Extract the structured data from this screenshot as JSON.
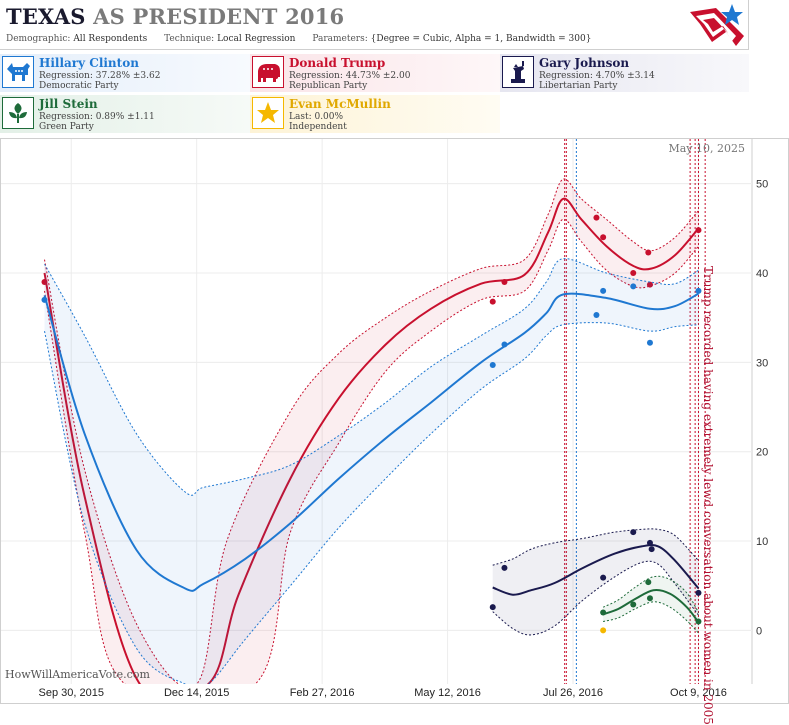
{
  "header": {
    "title_main": "TEXAS",
    "title_rest": " AS PRESIDENT 2016",
    "demographic_label": "Demographic:",
    "demographic_value": "All Respondents",
    "technique_label": "Technique:",
    "technique_value": "Local Regression",
    "parameters_label": "Parameters:",
    "parameters_value": "{Degree = Cubic, Alpha = 1, Bandwidth = 300}"
  },
  "candidates": [
    {
      "name": "Hillary Clinton",
      "stat": "Regression: 37.28% ±3.62",
      "party": "Democratic Party",
      "color": "#1f78d1",
      "icon": "donkey-icon"
    },
    {
      "name": "Donald Trump",
      "stat": "Regression: 44.73% ±2.00",
      "party": "Republican Party",
      "color": "#c8102e",
      "icon": "elephant-icon"
    },
    {
      "name": "Gary Johnson",
      "stat": "Regression: 4.70% ±3.14",
      "party": "Libertarian Party",
      "color": "#1a1a4e",
      "icon": "statue-of-liberty-icon"
    },
    {
      "name": "Jill Stein",
      "stat": "Regression: 0.89% ±1.11",
      "party": "Green Party",
      "color": "#1e6b3a",
      "icon": "leaf-icon"
    },
    {
      "name": "Evan McMullin",
      "stat": "Last: 0.00%",
      "party": "Independent",
      "color": "#f5b800",
      "icon": "star-icon"
    }
  ],
  "chart": {
    "date_label": "May 10, 2025",
    "watermark": "HowWillAmericaVote.com",
    "annotation": "Trump recorded having extremely lewd conversation about women in 2005"
  },
  "chart_data": {
    "type": "line",
    "ylim": [
      -6,
      55
    ],
    "xlim": [
      "2015-08-19",
      "2016-11-10"
    ],
    "y_ticks": [
      0,
      10,
      20,
      30,
      40,
      50
    ],
    "x_ticks": [
      "2015-09-30",
      "2015-12-14",
      "2016-02-27",
      "2016-05-12",
      "2016-07-26",
      "2016-10-09"
    ],
    "x_tick_labels": [
      "Sep 30, 2015",
      "Dec 14, 2015",
      "Feb 27, 2016",
      "May 12, 2016",
      "Jul 26, 2016",
      "Oct 9, 2016"
    ],
    "event_lines": [
      {
        "date": "2016-07-21",
        "color": "#c8102e"
      },
      {
        "date": "2016-07-22",
        "color": "#c8102e"
      },
      {
        "date": "2016-07-28",
        "color": "#1f78d1"
      },
      {
        "date": "2016-10-04",
        "color": "#c8102e"
      },
      {
        "date": "2016-10-07",
        "color": "#c8102e"
      },
      {
        "date": "2016-10-09",
        "color": "#c8102e"
      },
      {
        "date": "2016-10-13",
        "color": "#c8102e"
      }
    ],
    "series": [
      {
        "name": "Donald Trump",
        "color": "#c8102e",
        "line": [
          [
            "2015-09-14",
            40
          ],
          [
            "2015-10-08",
            15
          ],
          [
            "2015-11-10",
            -6
          ],
          [
            "2015-12-21",
            -6
          ],
          [
            "2016-01-08",
            4
          ],
          [
            "2016-02-08",
            17
          ],
          [
            "2016-03-08",
            26
          ],
          [
            "2016-04-05",
            32
          ],
          [
            "2016-05-02",
            36
          ],
          [
            "2016-06-01",
            38.8
          ],
          [
            "2016-06-27",
            39.8
          ],
          [
            "2016-07-11",
            44.5
          ],
          [
            "2016-07-20",
            48.3
          ],
          [
            "2016-07-31",
            46
          ],
          [
            "2016-08-15",
            43
          ],
          [
            "2016-08-31",
            40.8
          ],
          [
            "2016-09-11",
            40.5
          ],
          [
            "2016-09-25",
            42
          ],
          [
            "2016-10-09",
            45
          ]
        ],
        "upper": [
          [
            "2015-09-14",
            41.5
          ],
          [
            "2015-10-08",
            18
          ],
          [
            "2015-11-10",
            0
          ],
          [
            "2015-12-14",
            -6
          ],
          [
            "2016-01-01",
            10
          ],
          [
            "2016-02-08",
            24.5
          ],
          [
            "2016-03-08",
            31
          ],
          [
            "2016-04-05",
            35
          ],
          [
            "2016-05-02",
            38
          ],
          [
            "2016-06-01",
            40.5
          ],
          [
            "2016-06-27",
            41.5
          ],
          [
            "2016-07-11",
            46.5
          ],
          [
            "2016-07-20",
            50.5
          ],
          [
            "2016-07-31",
            48.3
          ],
          [
            "2016-08-15",
            46
          ],
          [
            "2016-08-31",
            43.5
          ],
          [
            "2016-09-11",
            42.5
          ],
          [
            "2016-09-25",
            44
          ],
          [
            "2016-10-09",
            47
          ]
        ],
        "lower": [
          [
            "2015-09-14",
            38
          ],
          [
            "2015-10-08",
            11
          ],
          [
            "2015-11-01",
            -6
          ],
          [
            "2016-01-18",
            -6
          ],
          [
            "2016-02-08",
            11
          ],
          [
            "2016-03-08",
            21
          ],
          [
            "2016-04-05",
            29
          ],
          [
            "2016-05-02",
            33.5
          ],
          [
            "2016-06-01",
            37
          ],
          [
            "2016-06-27",
            38
          ],
          [
            "2016-07-11",
            42.5
          ],
          [
            "2016-07-20",
            46
          ],
          [
            "2016-07-31",
            43.5
          ],
          [
            "2016-08-15",
            40.3
          ],
          [
            "2016-08-31",
            38.5
          ],
          [
            "2016-09-11",
            38.6
          ],
          [
            "2016-09-25",
            40
          ],
          [
            "2016-10-09",
            43
          ]
        ],
        "points": [
          [
            "2015-09-14",
            39
          ],
          [
            "2016-06-08",
            36.8
          ],
          [
            "2016-06-15",
            39
          ],
          [
            "2016-08-09",
            46.2
          ],
          [
            "2016-08-13",
            44
          ],
          [
            "2016-08-31",
            40
          ],
          [
            "2016-09-09",
            42.3
          ],
          [
            "2016-09-10",
            38.7
          ],
          [
            "2016-10-09",
            44.8
          ]
        ]
      },
      {
        "name": "Hillary Clinton",
        "color": "#1f78d1",
        "line": [
          [
            "2015-09-14",
            37.5
          ],
          [
            "2015-10-08",
            22
          ],
          [
            "2015-11-08",
            9
          ],
          [
            "2015-12-07",
            4.7
          ],
          [
            "2015-12-18",
            5.2
          ],
          [
            "2016-01-12",
            8
          ],
          [
            "2016-02-08",
            12
          ],
          [
            "2016-03-08",
            17
          ],
          [
            "2016-04-05",
            21.5
          ],
          [
            "2016-05-02",
            25.5
          ],
          [
            "2016-06-01",
            30
          ],
          [
            "2016-06-27",
            33.3
          ],
          [
            "2016-07-10",
            35.5
          ],
          [
            "2016-07-20",
            37.6
          ],
          [
            "2016-08-15",
            37.2
          ],
          [
            "2016-09-10",
            36
          ],
          [
            "2016-09-25",
            36.3
          ],
          [
            "2016-10-09",
            37.7
          ]
        ],
        "upper": [
          [
            "2015-09-14",
            41
          ],
          [
            "2015-10-08",
            33
          ],
          [
            "2015-11-08",
            22
          ],
          [
            "2015-12-07",
            15.5
          ],
          [
            "2015-12-18",
            16
          ],
          [
            "2016-01-12",
            17
          ],
          [
            "2016-02-08",
            18.5
          ],
          [
            "2016-03-08",
            21.8
          ],
          [
            "2016-04-05",
            25.5
          ],
          [
            "2016-05-02",
            29.5
          ],
          [
            "2016-06-01",
            33
          ],
          [
            "2016-06-27",
            36
          ],
          [
            "2016-07-10",
            39
          ],
          [
            "2016-07-20",
            41.6
          ],
          [
            "2016-08-15",
            40
          ],
          [
            "2016-09-10",
            39
          ],
          [
            "2016-09-25",
            38.8
          ],
          [
            "2016-10-09",
            40.3
          ]
        ],
        "lower": [
          [
            "2015-09-14",
            33.5
          ],
          [
            "2015-10-08",
            12
          ],
          [
            "2015-11-08",
            -2
          ],
          [
            "2015-12-07",
            -6
          ],
          [
            "2015-12-21",
            -6
          ],
          [
            "2016-01-12",
            -1
          ],
          [
            "2016-02-08",
            5
          ],
          [
            "2016-03-08",
            11.5
          ],
          [
            "2016-04-05",
            17
          ],
          [
            "2016-05-02",
            22
          ],
          [
            "2016-06-01",
            27
          ],
          [
            "2016-06-27",
            30.4
          ],
          [
            "2016-07-10",
            33
          ],
          [
            "2016-07-20",
            34.2
          ],
          [
            "2016-08-15",
            34.4
          ],
          [
            "2016-09-10",
            33.5
          ],
          [
            "2016-09-25",
            34
          ],
          [
            "2016-10-09",
            34.2
          ]
        ],
        "points": [
          [
            "2015-09-14",
            37
          ],
          [
            "2016-06-08",
            29.7
          ],
          [
            "2016-06-15",
            32
          ],
          [
            "2016-08-09",
            35.3
          ],
          [
            "2016-08-13",
            38
          ],
          [
            "2016-08-31",
            38.5
          ],
          [
            "2016-09-10",
            32.2
          ],
          [
            "2016-10-09",
            38
          ]
        ]
      },
      {
        "name": "Gary Johnson",
        "color": "#1a1a4e",
        "line": [
          [
            "2016-06-08",
            4.8
          ],
          [
            "2016-06-20",
            4
          ],
          [
            "2016-07-01",
            4.5
          ],
          [
            "2016-07-15",
            5.3
          ],
          [
            "2016-08-01",
            7
          ],
          [
            "2016-08-20",
            8.6
          ],
          [
            "2016-09-05",
            9.4
          ],
          [
            "2016-09-15",
            9.4
          ],
          [
            "2016-09-25",
            7.8
          ],
          [
            "2016-10-09",
            4.7
          ]
        ],
        "upper": [
          [
            "2016-06-08",
            7.3
          ],
          [
            "2016-06-20",
            8
          ],
          [
            "2016-07-01",
            9.1
          ],
          [
            "2016-07-15",
            9.8
          ],
          [
            "2016-08-01",
            10.3
          ],
          [
            "2016-08-20",
            11
          ],
          [
            "2016-09-05",
            11.3
          ],
          [
            "2016-09-15",
            11.3
          ],
          [
            "2016-09-25",
            10.6
          ],
          [
            "2016-10-09",
            7.8
          ]
        ],
        "lower": [
          [
            "2016-06-08",
            2.1
          ],
          [
            "2016-06-20",
            0.2
          ],
          [
            "2016-07-01",
            -0.5
          ],
          [
            "2016-07-15",
            0.5
          ],
          [
            "2016-08-01",
            3.4
          ],
          [
            "2016-08-20",
            6
          ],
          [
            "2016-09-05",
            7.6
          ],
          [
            "2016-09-15",
            7.4
          ],
          [
            "2016-09-25",
            5.2
          ],
          [
            "2016-10-09",
            1.7
          ]
        ],
        "points": [
          [
            "2016-06-08",
            2.6
          ],
          [
            "2016-06-15",
            7
          ],
          [
            "2016-08-13",
            5.9
          ],
          [
            "2016-08-31",
            11
          ],
          [
            "2016-09-10",
            9.8
          ],
          [
            "2016-09-11",
            9.1
          ],
          [
            "2016-10-09",
            4.2
          ]
        ]
      },
      {
        "name": "Jill Stein",
        "color": "#1e6b3a",
        "line": [
          [
            "2016-08-13",
            1.8
          ],
          [
            "2016-08-22",
            2.4
          ],
          [
            "2016-09-01",
            3.5
          ],
          [
            "2016-09-12",
            4.5
          ],
          [
            "2016-09-22",
            4.1
          ],
          [
            "2016-10-02",
            2.6
          ],
          [
            "2016-10-09",
            0.9
          ]
        ],
        "upper": [
          [
            "2016-08-13",
            2.6
          ],
          [
            "2016-08-22",
            3.4
          ],
          [
            "2016-09-01",
            4.8
          ],
          [
            "2016-09-12",
            6
          ],
          [
            "2016-09-22",
            5.7
          ],
          [
            "2016-10-02",
            4.2
          ],
          [
            "2016-10-09",
            2
          ]
        ],
        "lower": [
          [
            "2016-08-13",
            1
          ],
          [
            "2016-08-22",
            1.4
          ],
          [
            "2016-09-01",
            2.4
          ],
          [
            "2016-09-12",
            3.2
          ],
          [
            "2016-09-22",
            2.6
          ],
          [
            "2016-10-02",
            1.1
          ],
          [
            "2016-10-09",
            -0.3
          ]
        ],
        "points": [
          [
            "2016-08-13",
            2
          ],
          [
            "2016-08-31",
            2.9
          ],
          [
            "2016-09-09",
            5.4
          ],
          [
            "2016-09-10",
            3.6
          ],
          [
            "2016-10-09",
            1
          ]
        ]
      },
      {
        "name": "Evan McMullin",
        "color": "#f5b800",
        "line": [],
        "upper": [],
        "lower": [],
        "points": [
          [
            "2016-08-13",
            0
          ]
        ]
      }
    ]
  }
}
